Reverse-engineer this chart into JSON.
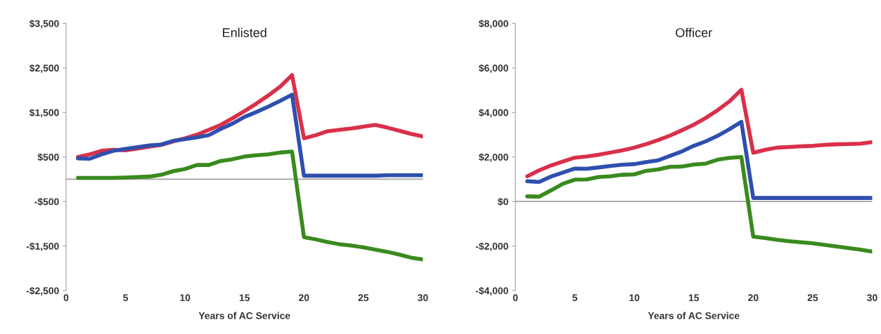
{
  "chart_data": [
    {
      "type": "line",
      "title": "Enlisted",
      "xlabel": "Years of AC Service",
      "x": [
        1,
        2,
        3,
        4,
        5,
        6,
        7,
        8,
        9,
        10,
        11,
        12,
        13,
        14,
        15,
        16,
        17,
        18,
        19,
        20,
        21,
        22,
        23,
        24,
        25,
        26,
        27,
        28,
        29,
        30
      ],
      "xlim": [
        0,
        30
      ],
      "xticks": [
        0,
        5,
        10,
        15,
        20,
        25,
        30
      ],
      "ylim": [
        -2500,
        3500
      ],
      "yticks": [
        {
          "value": -2500,
          "label": "-$2,500"
        },
        {
          "value": -1500,
          "label": "-$1,500"
        },
        {
          "value": -500,
          "label": "-$500"
        },
        {
          "value": 500,
          "label": "$500"
        },
        {
          "value": 1500,
          "label": "$1,500"
        },
        {
          "value": 2500,
          "label": "$2,500"
        },
        {
          "value": 3500,
          "label": "$3,500"
        }
      ],
      "grid": false,
      "marker": "none",
      "line_style": "solid",
      "ref_lines": [
        {
          "axis": "y",
          "value": 0,
          "color": "#a0a0a0"
        }
      ],
      "series": [
        {
          "color": "#d9304a",
          "values": [
            500,
            560,
            640,
            660,
            650,
            690,
            730,
            770,
            850,
            920,
            1000,
            1110,
            1220,
            1370,
            1530,
            1700,
            1880,
            2080,
            2340,
            920,
            990,
            1080,
            1110,
            1140,
            1180,
            1220,
            1160,
            1090,
            1020,
            960
          ]
        },
        {
          "color": "#2f4fae",
          "values": [
            470,
            460,
            560,
            640,
            680,
            720,
            760,
            780,
            860,
            900,
            940,
            990,
            1130,
            1250,
            1400,
            1510,
            1630,
            1760,
            1900,
            80,
            80,
            80,
            80,
            80,
            80,
            80,
            90,
            90,
            90,
            90
          ]
        },
        {
          "color": "#3a8a1e",
          "values": [
            30,
            30,
            30,
            30,
            40,
            50,
            60,
            100,
            180,
            230,
            320,
            320,
            410,
            450,
            510,
            540,
            560,
            600,
            620,
            -1300,
            -1350,
            -1410,
            -1460,
            -1490,
            -1530,
            -1580,
            -1630,
            -1690,
            -1760,
            -1800
          ]
        }
      ]
    },
    {
      "type": "line",
      "title": "Officer",
      "xlabel": "Years of AC Service",
      "x": [
        1,
        2,
        3,
        4,
        5,
        6,
        7,
        8,
        9,
        10,
        11,
        12,
        13,
        14,
        15,
        16,
        17,
        18,
        19,
        20,
        21,
        22,
        23,
        24,
        25,
        26,
        27,
        28,
        29,
        30
      ],
      "xlim": [
        0,
        30
      ],
      "xticks": [
        0,
        5,
        10,
        15,
        20,
        25,
        30
      ],
      "ylim": [
        -4000,
        8000
      ],
      "yticks": [
        {
          "value": -4000,
          "label": "-$4,000"
        },
        {
          "value": -2000,
          "label": "-$2,000"
        },
        {
          "value": 0,
          "label": "$0"
        },
        {
          "value": 2000,
          "label": "$2,000"
        },
        {
          "value": 4000,
          "label": "$4,000"
        },
        {
          "value": 6000,
          "label": "$6,000"
        },
        {
          "value": 8000,
          "label": "$8,000"
        }
      ],
      "grid": false,
      "marker": "none",
      "line_style": "solid",
      "ref_lines": [
        {
          "axis": "y",
          "value": 0,
          "color": "#a0a0a0"
        }
      ],
      "series": [
        {
          "color": "#d9304a",
          "values": [
            1130,
            1400,
            1620,
            1800,
            1970,
            2020,
            2100,
            2200,
            2300,
            2420,
            2580,
            2760,
            2960,
            3200,
            3450,
            3750,
            4100,
            4500,
            5020,
            2190,
            2320,
            2420,
            2450,
            2480,
            2500,
            2540,
            2570,
            2580,
            2600,
            2670
          ]
        },
        {
          "color": "#2f4fae",
          "values": [
            910,
            880,
            1120,
            1300,
            1480,
            1470,
            1530,
            1600,
            1650,
            1680,
            1770,
            1850,
            2050,
            2250,
            2500,
            2700,
            2950,
            3250,
            3580,
            160,
            160,
            160,
            160,
            160,
            160,
            160,
            160,
            160,
            160,
            160
          ]
        },
        {
          "color": "#3a8a1e",
          "values": [
            230,
            220,
            500,
            800,
            980,
            990,
            1100,
            1130,
            1200,
            1220,
            1380,
            1440,
            1560,
            1570,
            1660,
            1700,
            1880,
            1960,
            2000,
            -1580,
            -1640,
            -1720,
            -1780,
            -1830,
            -1880,
            -1950,
            -2020,
            -2090,
            -2160,
            -2250
          ]
        }
      ]
    }
  ]
}
